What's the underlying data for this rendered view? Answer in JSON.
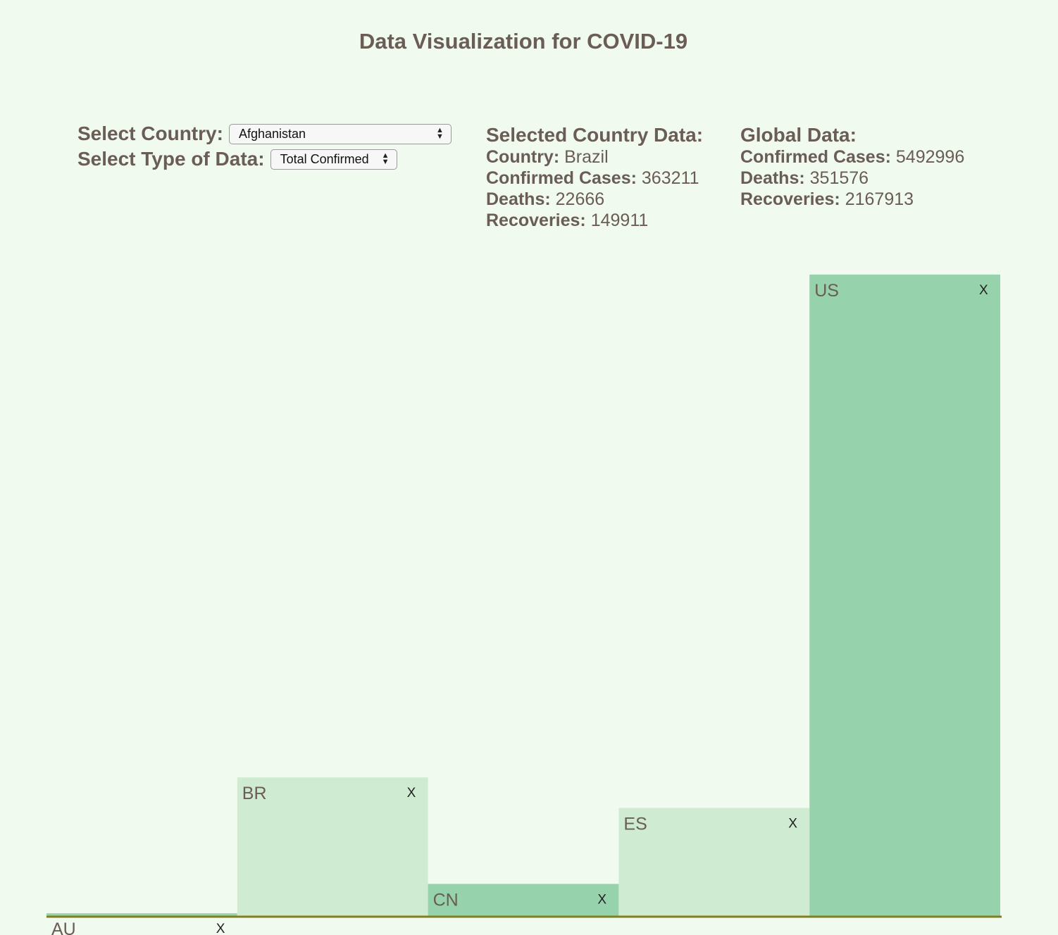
{
  "header": {
    "title": "Data Visualization for COVID-19"
  },
  "controls": {
    "country_label": "Select Country:",
    "country_value": "Afghanistan",
    "type_label": "Select Type of Data:",
    "type_value": "Total Confirmed"
  },
  "selected": {
    "heading": "Selected Country Data:",
    "country_label": "Country:",
    "country_value": "Brazil",
    "confirmed_label": "Confirmed Cases:",
    "confirmed_value": "363211",
    "deaths_label": "Deaths:",
    "deaths_value": "22666",
    "recoveries_label": "Recoveries:",
    "recoveries_value": "149911"
  },
  "global": {
    "heading": "Global Data:",
    "confirmed_label": "Confirmed Cases:",
    "confirmed_value": "5492996",
    "deaths_label": "Deaths:",
    "deaths_value": "351576",
    "recoveries_label": "Recoveries:",
    "recoveries_value": "2167913"
  },
  "colors": {
    "background": "#f0faef",
    "bar_dark": "#96d2ac",
    "bar_light": "#cfebd2",
    "baseline": "#7f7f20",
    "text": "#6a5d55"
  },
  "chart_data": {
    "type": "bar",
    "categories": [
      "AU",
      "BR",
      "CN",
      "ES",
      "US"
    ],
    "values": [
      7150,
      363211,
      84100,
      283300,
      1681000
    ],
    "remove_label": "X",
    "ylim": [
      0,
      1681000
    ]
  }
}
